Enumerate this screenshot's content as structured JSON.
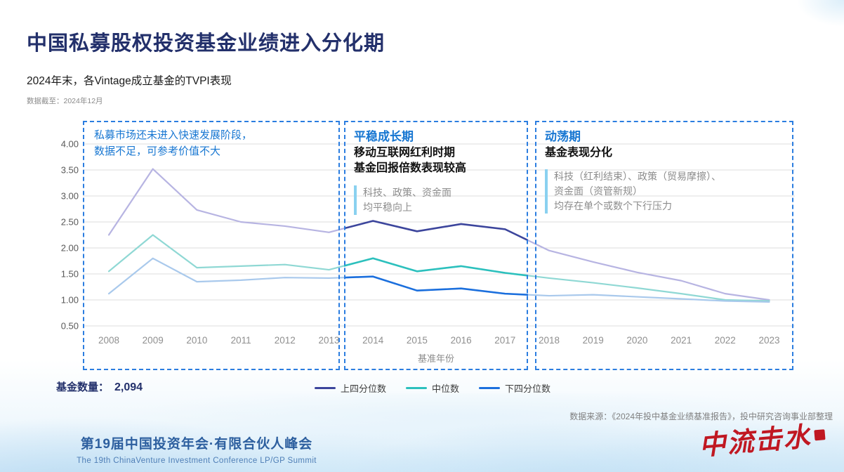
{
  "slide": {
    "title": "中国私募股权投资基金业绩进入分化期",
    "data_note": "数据截至：2024年12月"
  },
  "annotations": {
    "left": {
      "lines": [
        "私募市场还未进入快速发展阶段，",
        "数据不足，可参考价值不大"
      ]
    },
    "middle": {
      "header": "平稳成长期",
      "bold_lines": [
        "移动互联网红利时期",
        "基金回报倍数表现较高"
      ],
      "note_lines": [
        "科技、政策、资金面",
        "均平稳向上"
      ]
    },
    "right": {
      "header": "动荡期",
      "bold_lines": [
        "基金表现分化"
      ],
      "note_lines": [
        "科技（红利结束）、政策（贸易摩擦）、",
        "资金面（资管新规）",
        "均存在单个或数个下行压力"
      ]
    }
  },
  "chart_data": {
    "type": "line",
    "title": "2024年末，各Vintage成立基金的TVPI表现",
    "x": [
      2008,
      2009,
      2010,
      2011,
      2012,
      2013,
      2014,
      2015,
      2016,
      2017,
      2018,
      2019,
      2020,
      2021,
      2022,
      2023
    ],
    "xlabel": "基准年份",
    "ylabel": "",
    "ylim": [
      0.5,
      4.0
    ],
    "yticks": [
      0.5,
      1.0,
      1.5,
      2.0,
      2.5,
      3.0,
      3.5,
      4.0
    ],
    "grid": true,
    "legend_position": "bottom",
    "highlight_range": [
      2013,
      2017
    ],
    "series": [
      {
        "name": "上四分位数",
        "color": "#3c459c",
        "faded_color": "#b7b4e2",
        "values": [
          2.25,
          3.52,
          2.73,
          2.5,
          2.42,
          2.3,
          2.52,
          2.32,
          2.46,
          2.36,
          1.95,
          1.73,
          1.53,
          1.37,
          1.12,
          1.0
        ]
      },
      {
        "name": "中位数",
        "color": "#2cc0bd",
        "faded_color": "#8fd8d4",
        "values": [
          1.55,
          2.25,
          1.62,
          1.65,
          1.68,
          1.58,
          1.8,
          1.55,
          1.65,
          1.52,
          1.42,
          1.33,
          1.23,
          1.12,
          1.0,
          0.98
        ]
      },
      {
        "name": "下四分位数",
        "color": "#1b6fdd",
        "faded_color": "#a9c9ec",
        "values": [
          1.12,
          1.8,
          1.35,
          1.38,
          1.43,
          1.42,
          1.45,
          1.18,
          1.22,
          1.12,
          1.08,
          1.1,
          1.06,
          1.02,
          0.98,
          0.96
        ]
      }
    ]
  },
  "footer": {
    "fund_count_label": "基金数量：",
    "fund_count_value": "2,094",
    "source": "数据来源：《2024年投中基金业绩基准报告》，投中研究咨询事业部整理",
    "conference_cn": "第19届中国投资年会·有限合伙人峰会",
    "conference_en": "The 19th ChinaVenture Investment Conference LP/GP Summit",
    "logo_text": "中流击水"
  },
  "colors": {
    "title_navy": "#23306b",
    "accent_blue": "#1877d2",
    "box_border": "#2b7de0",
    "note_bar": "#8ad1f0",
    "footer_blue": "#2d5f9f",
    "logo_red": "#c01822",
    "grid_gray": "#dcdcdc",
    "axis_text": "#595959",
    "x_tick_text": "#8f8f8f"
  }
}
